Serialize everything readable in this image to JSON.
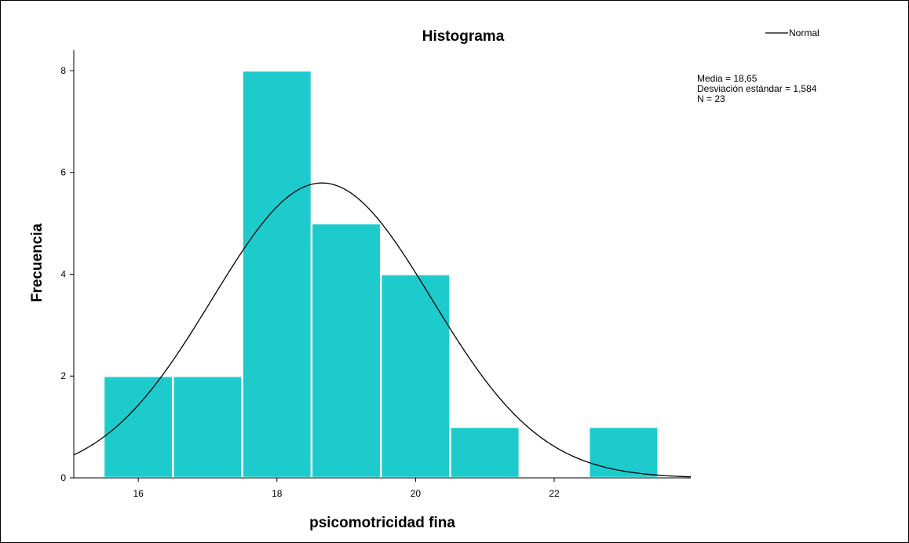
{
  "chart_data": {
    "type": "bar",
    "title": "Histograma",
    "xlabel": "psicomotricidad fina",
    "ylabel": "Frecuencia",
    "bins": [
      {
        "center": 16,
        "value": 2
      },
      {
        "center": 17,
        "value": 2
      },
      {
        "center": 18,
        "value": 8
      },
      {
        "center": 19,
        "value": 5
      },
      {
        "center": 20,
        "value": 4
      },
      {
        "center": 21,
        "value": 1
      },
      {
        "center": 22,
        "value": 0
      },
      {
        "center": 23,
        "value": 1
      }
    ],
    "bin_width": 1,
    "xlim": [
      15.07,
      23.97
    ],
    "ylim": [
      0,
      8.4
    ],
    "xticks": [
      "16",
      "18",
      "20",
      "22"
    ],
    "yticks": [
      "0",
      "2",
      "4",
      "6",
      "8"
    ],
    "grid": false,
    "legend": {
      "entries": [
        "Normal"
      ],
      "placement": "top-right"
    },
    "curve": {
      "type": "normal",
      "mean": 18.65,
      "sd": 1.584,
      "n": 23
    },
    "stats_lines": [
      "Media = 18,65",
      "Desviación estándar = 1,584",
      "N = 23"
    ],
    "colors": {
      "bar": "#1ecbcc",
      "bar_edge": "#ffffff",
      "curve": "#000000",
      "axis": "#000000"
    }
  }
}
